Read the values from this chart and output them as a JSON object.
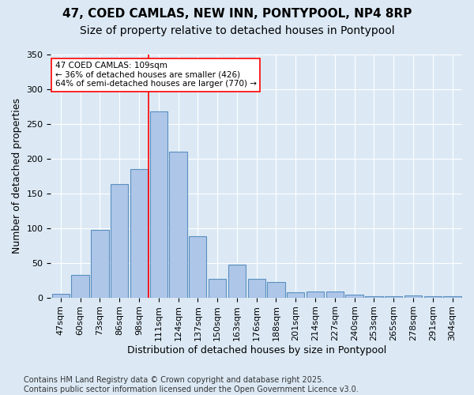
{
  "title": "47, COED CAMLAS, NEW INN, PONTYPOOL, NP4 8RP",
  "subtitle": "Size of property relative to detached houses in Pontypool",
  "xlabel": "Distribution of detached houses by size in Pontypool",
  "ylabel": "Number of detached properties",
  "categories": [
    "47sqm",
    "60sqm",
    "73sqm",
    "86sqm",
    "98sqm",
    "111sqm",
    "124sqm",
    "137sqm",
    "150sqm",
    "163sqm",
    "176sqm",
    "188sqm",
    "201sqm",
    "214sqm",
    "227sqm",
    "240sqm",
    "253sqm",
    "265sqm",
    "278sqm",
    "291sqm",
    "304sqm"
  ],
  "values": [
    5,
    33,
    97,
    163,
    185,
    268,
    210,
    88,
    27,
    47,
    27,
    22,
    7,
    9,
    9,
    4,
    2,
    2,
    3,
    2,
    2
  ],
  "bar_color": "#aec6e8",
  "bar_edge_color": "#5a8fc0",
  "background_color": "#dce9f5",
  "vline_color": "red",
  "annotation_text": "47 COED CAMLAS: 109sqm\n← 36% of detached houses are smaller (426)\n64% of semi-detached houses are larger (770) →",
  "annotation_box_color": "white",
  "annotation_box_edge_color": "red",
  "ylim": [
    0,
    350
  ],
  "yticks": [
    0,
    50,
    100,
    150,
    200,
    250,
    300,
    350
  ],
  "footer": "Contains HM Land Registry data © Crown copyright and database right 2025.\nContains public sector information licensed under the Open Government Licence v3.0.",
  "title_fontsize": 11,
  "subtitle_fontsize": 10,
  "xlabel_fontsize": 9,
  "ylabel_fontsize": 9,
  "tick_fontsize": 8,
  "footer_fontsize": 7
}
